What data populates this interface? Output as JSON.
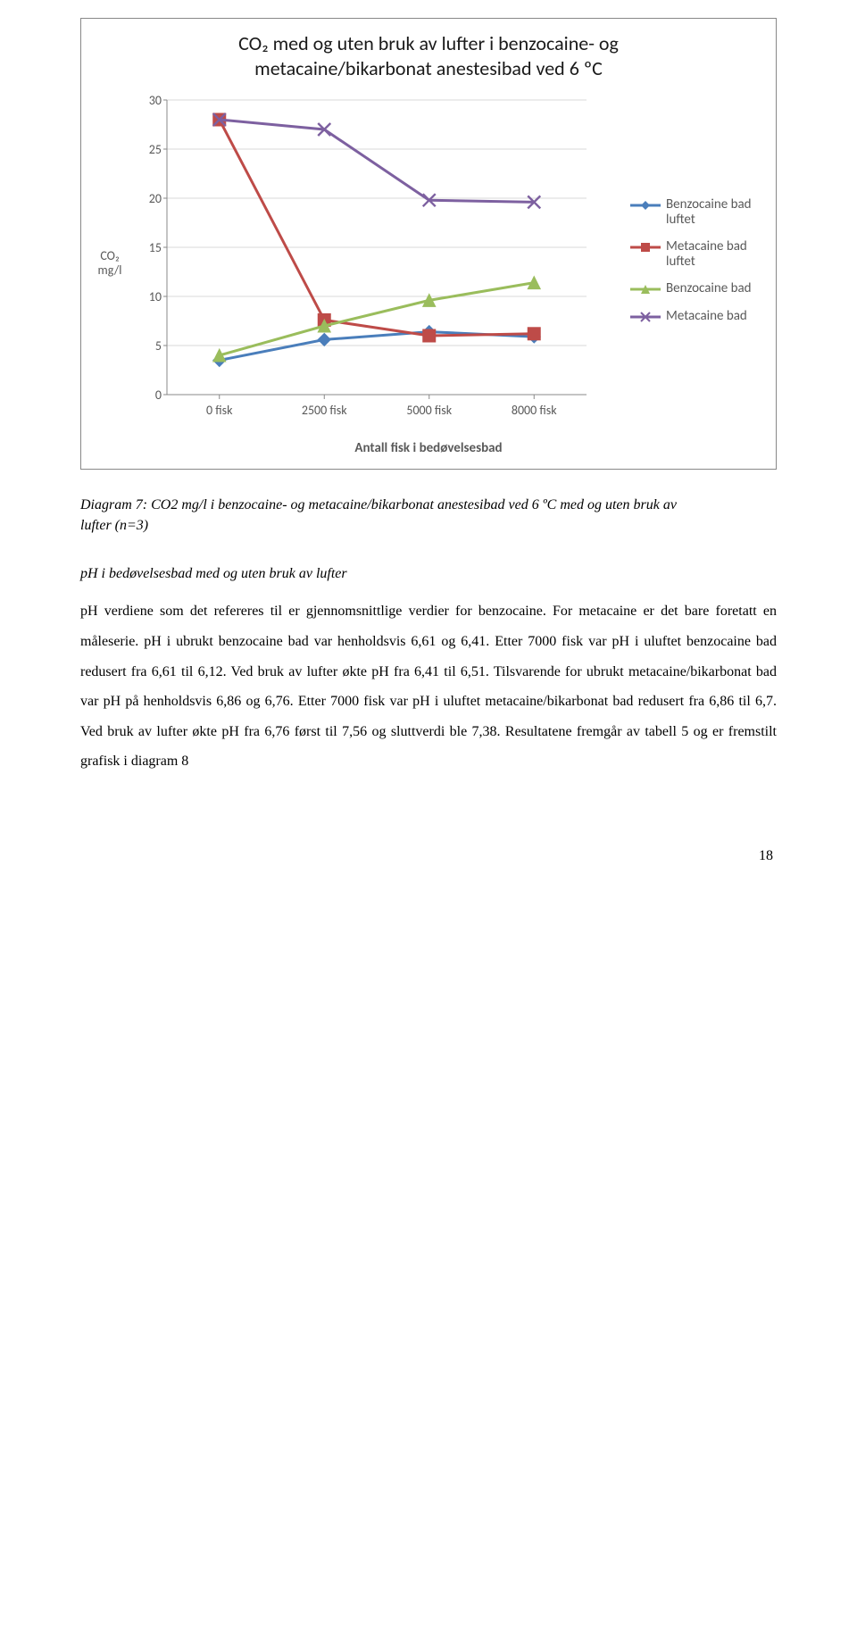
{
  "chart": {
    "type": "line",
    "title_line1": "CO₂ med og uten bruk av lufter i benzocaine- og",
    "title_line2": "metacaine/bikarbonat anestesibad ved 6 ºC",
    "y_axis_label": "CO₂ mg/l",
    "x_axis_label": "Antall fisk i bedøvelsesbad",
    "categories": [
      "0 fisk",
      "2500 fisk",
      "5000 fisk",
      "8000 fisk"
    ],
    "ylim": [
      0,
      30
    ],
    "ytick_step": 5,
    "yticks": [
      "0",
      "5",
      "10",
      "15",
      "20",
      "25",
      "30"
    ],
    "background_color": "#ffffff",
    "grid_color": "#d9d9d9",
    "axis_color": "#888888",
    "tick_font_size": 14,
    "title_font_size": 22,
    "axis_label_font_size": 15,
    "line_width": 3,
    "marker_size": 7,
    "series": [
      {
        "name": "Benzocaine bad luftet",
        "color": "#4a7ebb",
        "marker": "diamond",
        "values": [
          3.5,
          5.6,
          6.4,
          5.9
        ]
      },
      {
        "name": "Metacaine bad luftet",
        "color": "#be4b48",
        "marker": "square",
        "values": [
          28.0,
          7.6,
          6.0,
          6.2
        ]
      },
      {
        "name": "Benzocaine bad",
        "color": "#9abd5c",
        "marker": "triangle",
        "values": [
          4.0,
          7.0,
          9.6,
          11.4
        ]
      },
      {
        "name": "Metacaine bad",
        "color": "#7d60a0",
        "marker": "x",
        "values": [
          28.0,
          27.0,
          19.8,
          19.6
        ]
      }
    ]
  },
  "caption": {
    "line1": "Diagram 7: CO2 mg/l i benzocaine- og metacaine/bikarbonat anestesibad ved 6 ºC med og uten bruk av",
    "line2": "lufter (n=3)"
  },
  "section_heading": "pH i bedøvelsesbad med og uten bruk av lufter",
  "body": "pH verdiene som det refereres til er gjennomsnittlige verdier for benzocaine. For metacaine er det bare foretatt en måleserie. pH i ubrukt benzocaine bad var henholdsvis 6,61 og 6,41. Etter 7000 fisk var pH i uluftet benzocaine bad redusert fra 6,61 til 6,12. Ved bruk av lufter økte pH fra 6,41 til 6,51. Tilsvarende for ubrukt metacaine/bikarbonat bad var pH på henholdsvis 6,86 og 6,76. Etter 7000 fisk var pH i uluftet metacaine/bikarbonat bad redusert fra 6,86 til 6,7. Ved bruk av lufter økte pH fra 6,76 først til 7,56 og sluttverdi ble 7,38. Resultatene fremgår av tabell 5 og er fremstilt grafisk i diagram 8",
  "page_number": "18"
}
